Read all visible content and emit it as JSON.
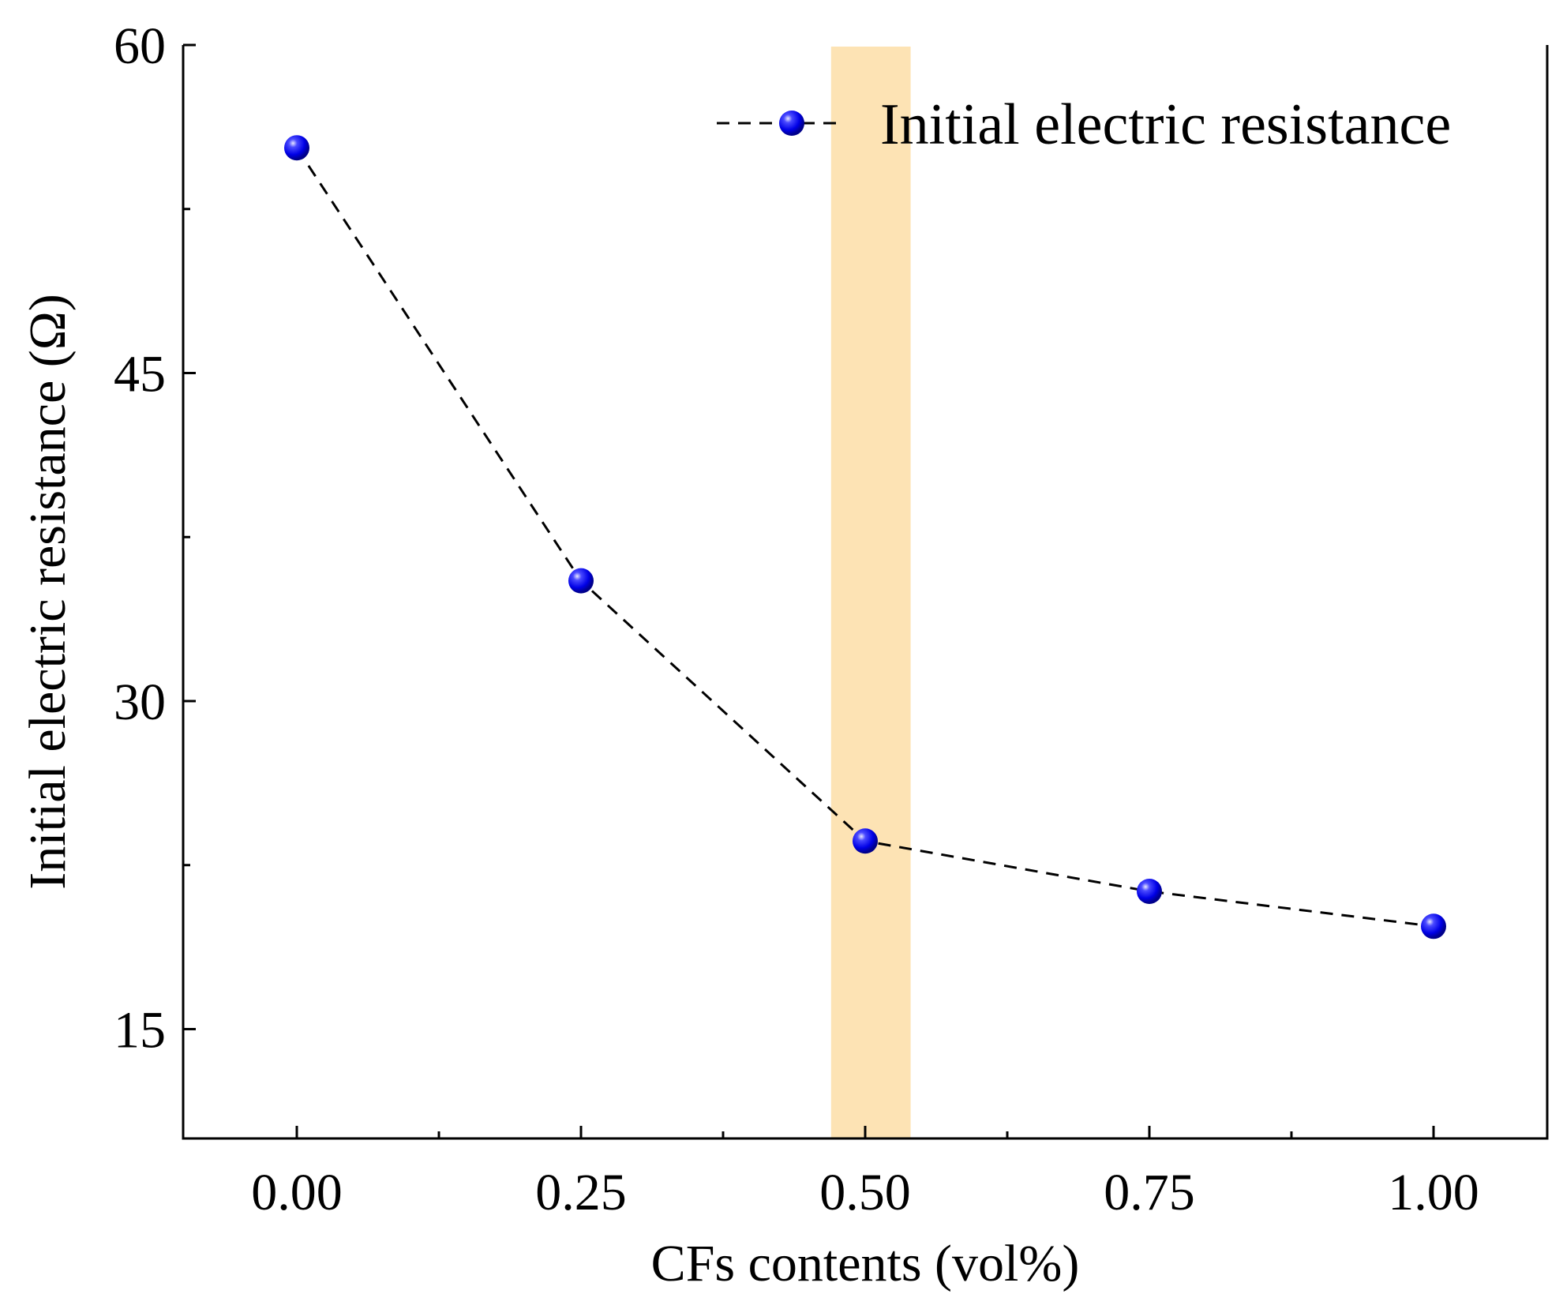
{
  "chart_data": {
    "type": "line",
    "title": "",
    "xlabel": "CFs contents (vol%)",
    "ylabel": "Initial electric resistance (Ω)",
    "x": [
      0.0,
      0.25,
      0.5,
      0.75,
      1.0
    ],
    "x_tick_labels": [
      "0.00",
      "0.25",
      "0.50",
      "0.75",
      "1.00"
    ],
    "y_ticks": [
      15,
      30,
      45,
      60
    ],
    "y_tick_labels": [
      "15",
      "30",
      "45",
      "60"
    ],
    "xlim": [
      -0.1,
      1.1
    ],
    "ylim": [
      10,
      60
    ],
    "grid": false,
    "legend_position": "top-right",
    "series": [
      {
        "name": "Initial electric resistance",
        "values": [
          55.3,
          35.5,
          23.6,
          21.3,
          19.7
        ],
        "line_style": "dashed",
        "line_color": "#000000",
        "marker": "sphere",
        "marker_color": "#1a1aff"
      }
    ],
    "highlight_band": {
      "x_range": [
        0.47,
        0.54
      ],
      "color": "#fde3b4"
    }
  }
}
